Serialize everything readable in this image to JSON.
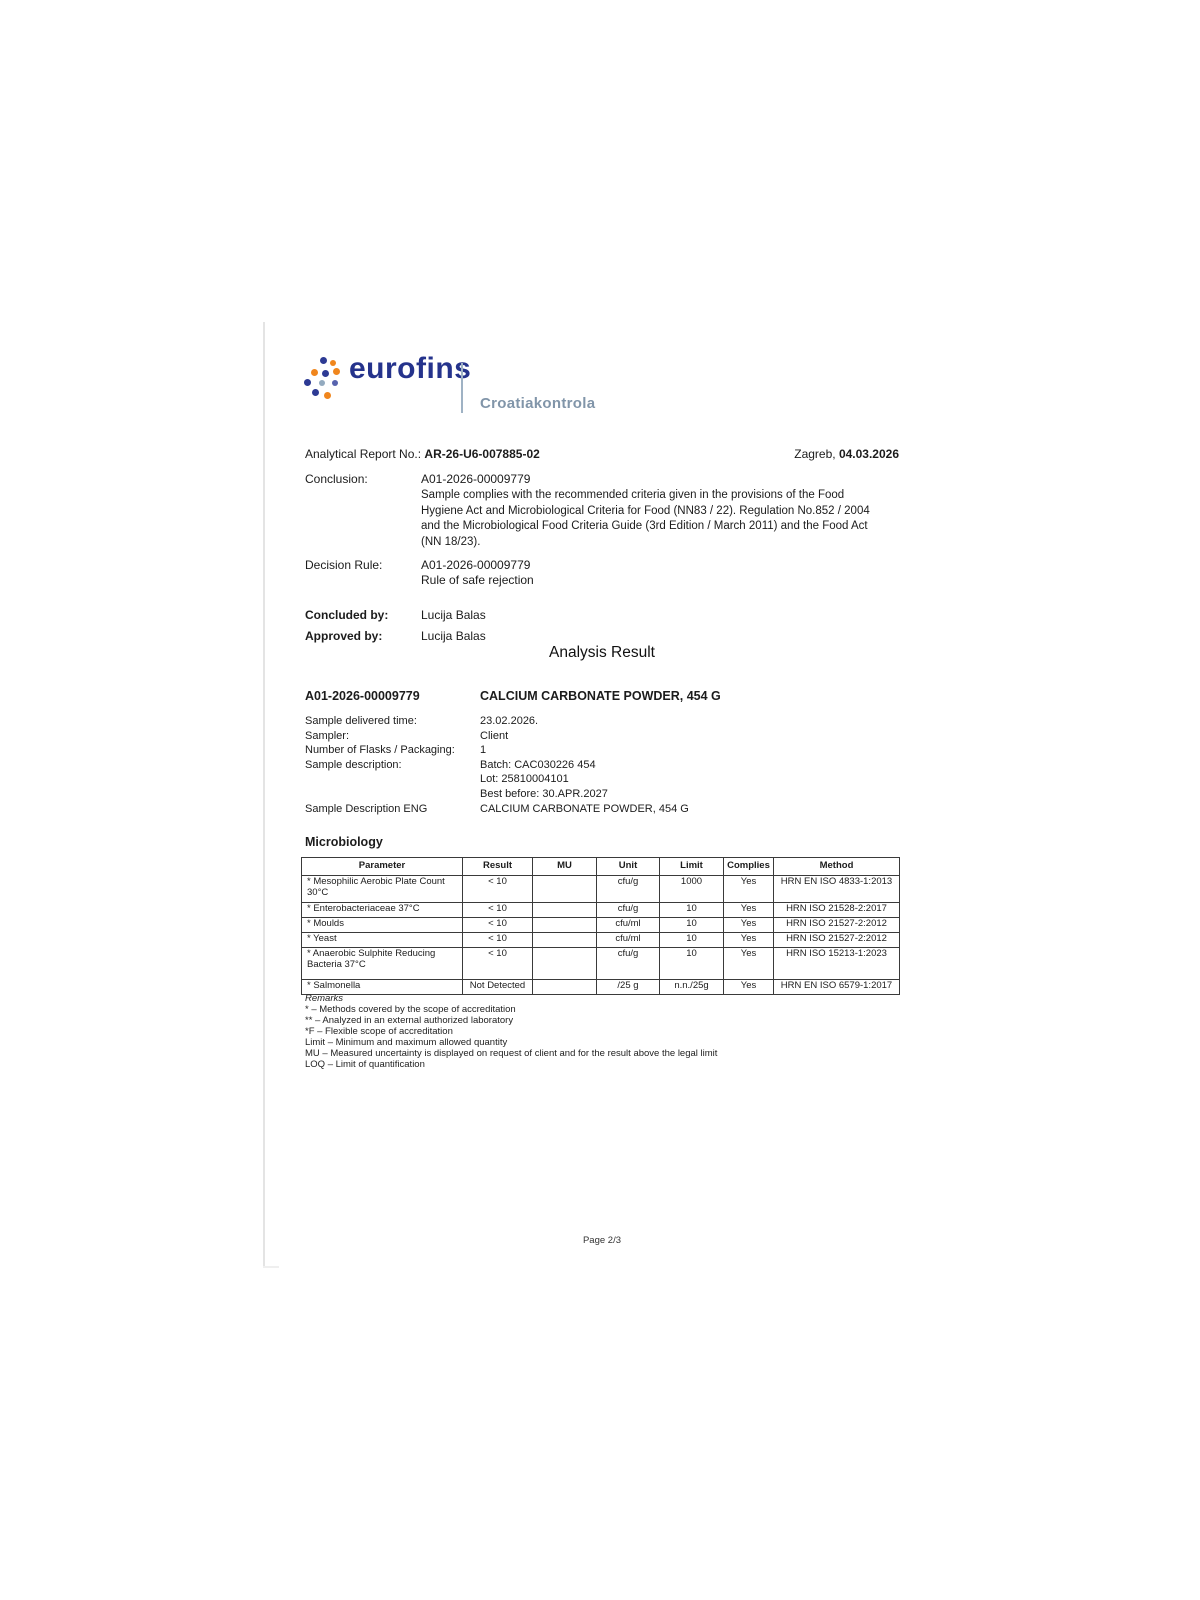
{
  "logo": {
    "brand": "eurofins",
    "division": "Croatiakontrola",
    "icon": "eurofins-dots-icon",
    "colors": {
      "brand_blue": "#25338c",
      "dot_orange": "#f0861d",
      "dot_blue": "#2d3a94",
      "dot_light": "#93aabf",
      "division_gray": "#8195a9"
    }
  },
  "header": {
    "report_label": "Analytical Report No.:",
    "report_no": "AR-26-U6-007885-02",
    "city_label": "Zagreb,",
    "date": "04.03.2026",
    "conclusion_label": "Conclusion:",
    "conclusion_id": "A01-2026-00009779",
    "conclusion_text": "Sample complies with the recommended criteria given in the provisions of the Food Hygiene Act and Microbiological Criteria for Food (NN83 / 22). Regulation No.852 / 2004 and the Microbiological Food Criteria Guide (3rd Edition / March 2011) and the Food Act (NN 18/23).",
    "decision_label": "Decision Rule:",
    "decision_id": "A01-2026-00009779",
    "decision_text": "Rule of safe rejection",
    "concluded_label": "Concluded by:",
    "concluded_by": "Lucija Balas",
    "approved_label": "Approved by:",
    "approved_by": "Lucija Balas"
  },
  "analysis": {
    "title": "Analysis Result",
    "sample_id": "A01-2026-00009779",
    "sample_name": "CALCIUM CARBONATE POWDER, 454 G",
    "details": [
      {
        "label": "Sample delivered time:",
        "values": [
          "23.02.2026."
        ]
      },
      {
        "label": "Sampler:",
        "values": [
          "Client"
        ]
      },
      {
        "label": "Number of Flasks / Packaging:",
        "values": [
          "1"
        ]
      },
      {
        "label": "Sample description:",
        "values": [
          "Batch: CAC030226 454",
          "Lot: 25810004101",
          "Best before: 30.APR.2027"
        ]
      },
      {
        "label": "Sample Description ENG",
        "values": [
          "CALCIUM CARBONATE POWDER, 454 G"
        ]
      }
    ]
  },
  "microbiology": {
    "section_title": "Microbiology",
    "columns": [
      "Parameter",
      "Result",
      "MU",
      "Unit",
      "Limit",
      "Complies",
      "Method"
    ],
    "rows": [
      [
        "* Mesophilic Aerobic Plate Count 30°C",
        "< 10",
        "",
        "cfu/g",
        "1000",
        "Yes",
        "HRN EN ISO 4833-1:2013"
      ],
      [
        "* Enterobacteriaceae 37°C",
        "< 10",
        "",
        "cfu/g",
        "10",
        "Yes",
        "HRN ISO 21528-2:2017"
      ],
      [
        "* Moulds",
        "< 10",
        "",
        "cfu/ml",
        "10",
        "Yes",
        "HRN ISO 21527-2:2012"
      ],
      [
        "* Yeast",
        "< 10",
        "",
        "cfu/ml",
        "10",
        "Yes",
        "HRN ISO 21527-2:2012"
      ],
      [
        "* Anaerobic Sulphite Reducing Bacteria 37°C",
        "< 10",
        "",
        "cfu/g",
        "10",
        "Yes",
        "HRN ISO 15213-1:2023"
      ],
      [
        "* Salmonella",
        "Not Detected",
        "",
        "/25 g",
        "n.n./25g",
        "Yes",
        "HRN EN ISO 6579-1:2017"
      ]
    ]
  },
  "remarks": {
    "title": "Remarks",
    "lines": [
      "* – Methods covered by the scope of accreditation",
      "** – Analyzed in an external authorized laboratory",
      "*F – Flexible scope of accreditation",
      "Limit – Minimum and maximum allowed quantity",
      "MU – Measured uncertainty is displayed on request of client and for the result above the legal limit",
      "LOQ – Limit of quantification"
    ]
  },
  "page": {
    "footer": "Page 2/3"
  }
}
